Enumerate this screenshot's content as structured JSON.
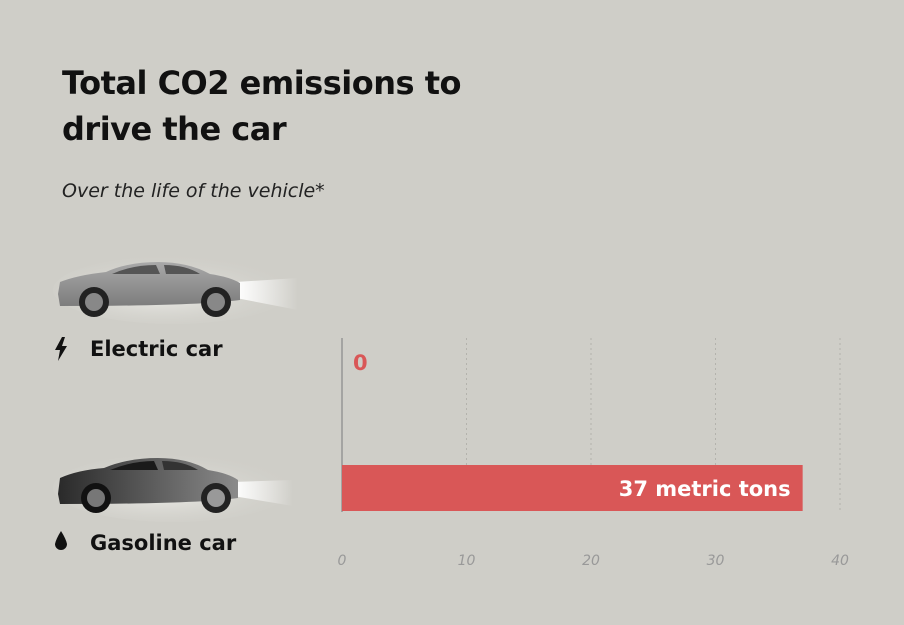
{
  "title": "Total CO2 emissions to drive the car",
  "subtitle": "Over the life of the vehicle*",
  "colors": {
    "bar": "#d95757",
    "zero_label": "#d95757",
    "background": "#cfcec8"
  },
  "icons": {
    "electric": "lightning-bolt-icon",
    "gasoline": "fuel-drop-icon"
  },
  "chart_data": {
    "type": "bar",
    "orientation": "horizontal",
    "title": "Total CO2 emissions to drive the car",
    "subtitle": "Over the life of the vehicle*",
    "categories": [
      "Electric car",
      "Gasoline car"
    ],
    "values": [
      0,
      37
    ],
    "data_labels": [
      "0",
      "37 metric tons"
    ],
    "xlim": [
      0,
      40
    ],
    "xticks": [
      "0",
      "10",
      "20",
      "30",
      "40"
    ],
    "grid": true
  }
}
